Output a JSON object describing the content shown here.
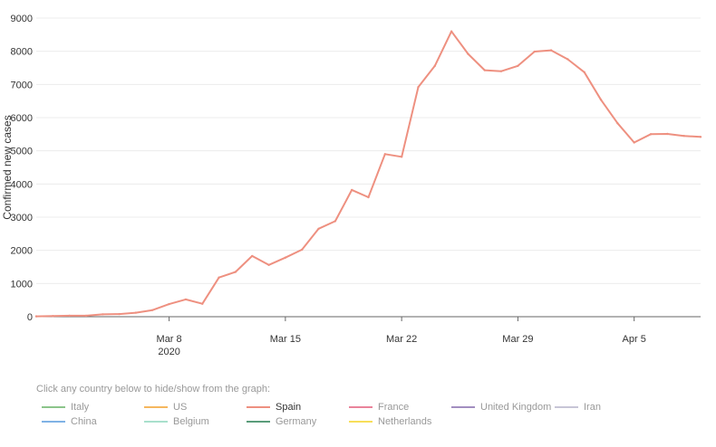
{
  "chart_data": {
    "type": "line",
    "ylabel": "Confirmed new cases",
    "ylim": [
      0,
      9000
    ],
    "yticks": [
      0,
      1000,
      2000,
      3000,
      4000,
      5000,
      6000,
      7000,
      8000,
      9000
    ],
    "xlim": [
      "2020-02-29",
      "2020-04-09"
    ],
    "xticks": [
      {
        "date": "2020-03-08",
        "label": "Mar 8",
        "sublabel": "2020"
      },
      {
        "date": "2020-03-15",
        "label": "Mar 15",
        "sublabel": ""
      },
      {
        "date": "2020-03-22",
        "label": "Mar 22",
        "sublabel": ""
      },
      {
        "date": "2020-03-29",
        "label": "Mar 29",
        "sublabel": ""
      },
      {
        "date": "2020-04-05",
        "label": "Apr 5",
        "sublabel": ""
      }
    ],
    "grid": true,
    "series": [
      {
        "name": "Spain",
        "color": "#ee9080",
        "x": [
          "2020-02-29",
          "2020-03-01",
          "2020-03-02",
          "2020-03-03",
          "2020-03-04",
          "2020-03-05",
          "2020-03-06",
          "2020-03-07",
          "2020-03-08",
          "2020-03-09",
          "2020-03-10",
          "2020-03-11",
          "2020-03-12",
          "2020-03-13",
          "2020-03-14",
          "2020-03-15",
          "2020-03-16",
          "2020-03-17",
          "2020-03-18",
          "2020-03-19",
          "2020-03-20",
          "2020-03-21",
          "2020-03-22",
          "2020-03-23",
          "2020-03-24",
          "2020-03-25",
          "2020-03-26",
          "2020-03-27",
          "2020-03-28",
          "2020-03-29",
          "2020-03-30",
          "2020-03-31",
          "2020-04-01",
          "2020-04-02",
          "2020-04-03",
          "2020-04-04",
          "2020-04-05",
          "2020-04-06",
          "2020-04-07",
          "2020-04-08",
          "2020-04-09"
        ],
        "values": [
          10,
          20,
          30,
          30,
          70,
          80,
          120,
          200,
          380,
          520,
          390,
          1180,
          1350,
          1830,
          1560,
          1780,
          2020,
          2650,
          2880,
          3820,
          3600,
          4900,
          4820,
          6920,
          7560,
          8600,
          7920,
          7430,
          7400,
          7560,
          7990,
          8030,
          7760,
          7370,
          6540,
          5830,
          5250,
          5500,
          5510,
          5450,
          5420
        ]
      }
    ]
  },
  "legend": {
    "instruction": "Click any country below to hide/show from the graph:",
    "items": [
      {
        "name": "Italy",
        "color": "#8bc48a",
        "active": false
      },
      {
        "name": "US",
        "color": "#f5b75e",
        "active": false
      },
      {
        "name": "Spain",
        "color": "#ee9080",
        "active": true
      },
      {
        "name": "France",
        "color": "#e9839b",
        "active": false
      },
      {
        "name": "United Kingdom",
        "color": "#a28ec0",
        "active": false
      },
      {
        "name": "Iran",
        "color": "#c7c5d6",
        "active": false
      },
      {
        "name": "China",
        "color": "#7fb2e5",
        "active": false
      },
      {
        "name": "Belgium",
        "color": "#a9e0cc",
        "active": false
      },
      {
        "name": "Germany",
        "color": "#5a9c7a",
        "active": false
      },
      {
        "name": "Netherlands",
        "color": "#f7de5a",
        "active": false
      }
    ]
  }
}
